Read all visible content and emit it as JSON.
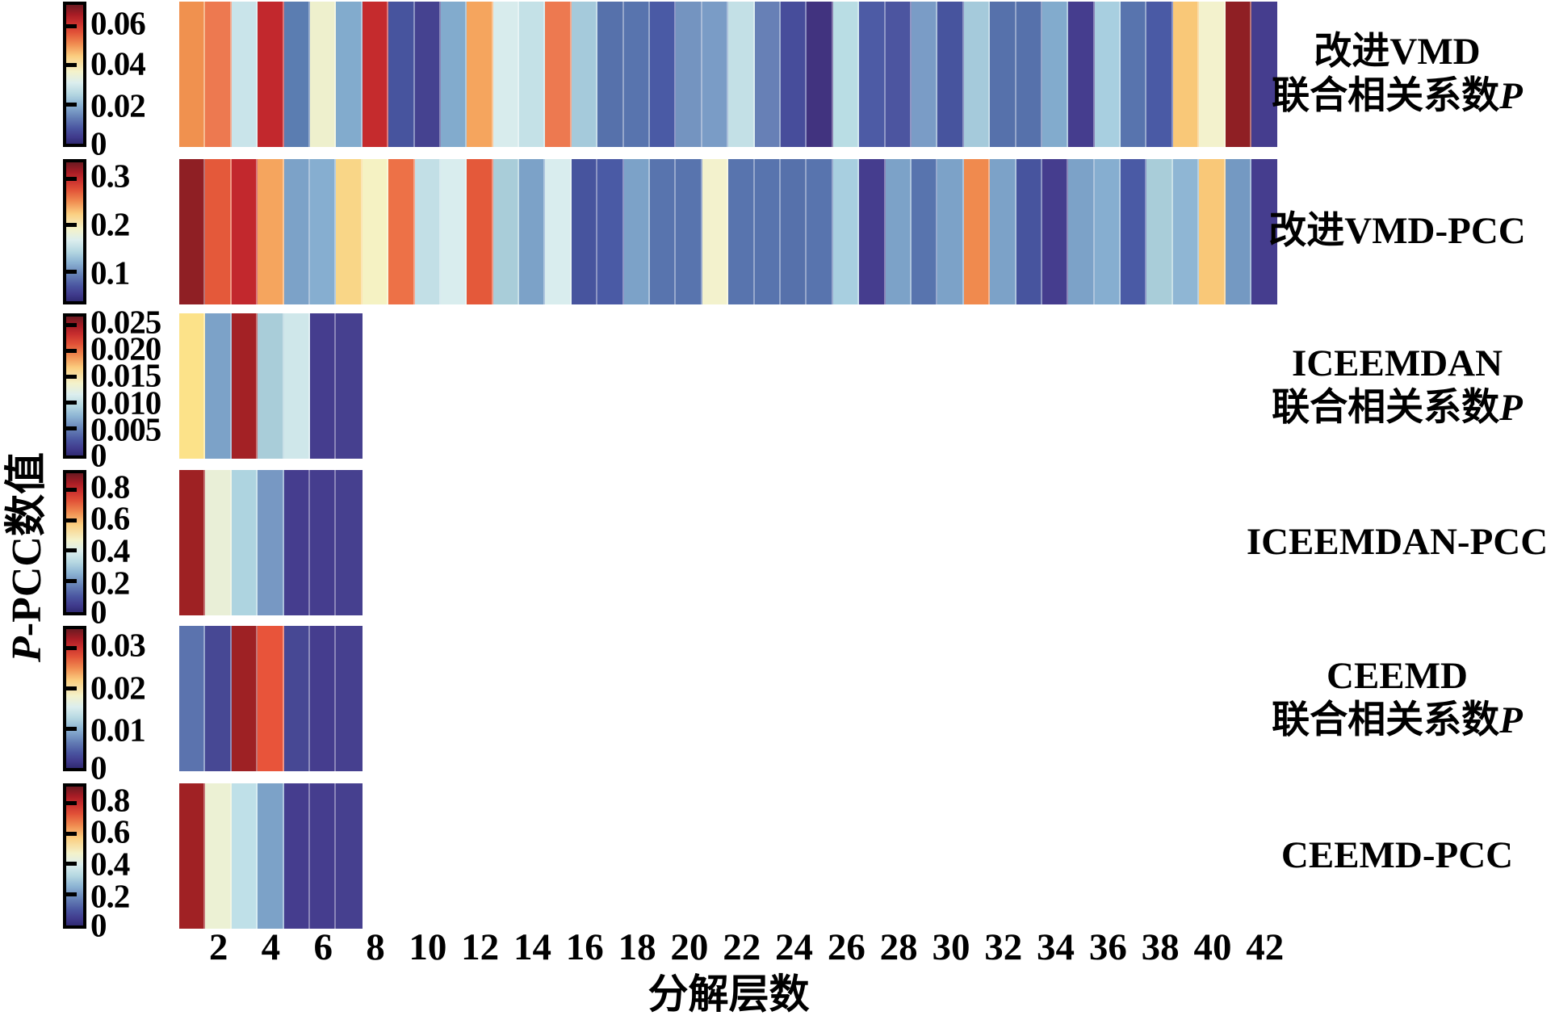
{
  "chart_data": {
    "type": "heatmap",
    "title": "",
    "xlabel": "分解层数",
    "ylabel": "P-PCC数值",
    "x_ticks": [
      "2",
      "4",
      "6",
      "8",
      "10",
      "12",
      "14",
      "16",
      "18",
      "20",
      "22",
      "24",
      "26",
      "28",
      "30",
      "32",
      "34",
      "36",
      "38",
      "40",
      "42"
    ],
    "n_cols_long": 42,
    "n_cols_short": 7,
    "legend_position": "per-row colorbar on left",
    "grid": false,
    "colormap_gradient_top_to_bottom": [
      "#6b1a21 0%",
      "#a81c25 7%",
      "#c9302e 13%",
      "#e25338 20%",
      "#f08b50 28%",
      "#fbce80 37%",
      "#f4f2ca 48%",
      "#dceeee 56%",
      "#b6d8e2 64%",
      "#8cb3d3 72%",
      "#6580b6 81%",
      "#4a55a0 89%",
      "#403b8d 95%",
      "#302a72 100%"
    ],
    "rows": [
      {
        "name": "改进VMD 联合相关系数P",
        "label_lines": [
          "改进VMD",
          "联合相关系数P"
        ],
        "colorbar_range_estimate": [
          0,
          0.07
        ],
        "colorbar_ticks": [
          {
            "label": "0.06",
            "pos": 0.15
          },
          {
            "label": "0.04",
            "pos": 0.43
          },
          {
            "label": "0.02",
            "pos": 0.715
          },
          {
            "label": "0",
            "pos": 0.975
          }
        ],
        "cells": [
          "#f0914f",
          "#ed7950",
          "#c9e4ea",
          "#c2282d",
          "#5b7db1",
          "#eef0cd",
          "#82abcd",
          "#c52b2d",
          "#47549e",
          "#454290",
          "#82abcd",
          "#f5a55e",
          "#d8eced",
          "#c4e1e7",
          "#ed7950",
          "#a5cadb",
          "#5671ab",
          "#5874ae",
          "#4a5aa5",
          "#7494c0",
          "#7a9cc6",
          "#c3e0e6",
          "#6780b6",
          "#474d9b",
          "#41337f",
          "#b9dde4",
          "#4d5ba5",
          "#4c55a0",
          "#7a9cc6",
          "#47549e",
          "#a5cadb",
          "#5671ab",
          "#5671ab",
          "#82abcd",
          "#453d8e",
          "#a8cfe0",
          "#5874ae",
          "#4a5aa5",
          "#f9c878",
          "#f3f2cd",
          "#8f1f24",
          "#453d8e"
        ]
      },
      {
        "name": "改进VMD-PCC",
        "label_lines": [
          "改进VMD-PCC"
        ],
        "colorbar_range_estimate": [
          0.05,
          0.35
        ],
        "colorbar_ticks": [
          {
            "label": "0.3",
            "pos": 0.115
          },
          {
            "label": "0.2",
            "pos": 0.45
          },
          {
            "label": "0.1",
            "pos": 0.785
          }
        ],
        "cells": [
          "#8f1f24",
          "#e4593a",
          "#c2282d",
          "#f5a55e",
          "#7ca2c8",
          "#86aed0",
          "#f9d687",
          "#f5f2c3",
          "#ed7147",
          "#c2dfe6",
          "#d9edee",
          "#e4593a",
          "#a9cdd9",
          "#7ca2c8",
          "#d9edee",
          "#47549e",
          "#4a5aa5",
          "#7ca2c8",
          "#5874ae",
          "#5874ae",
          "#f3f2cd",
          "#5874ae",
          "#5874ae",
          "#5671ab",
          "#5874ae",
          "#a8cfe0",
          "#453d8e",
          "#7ca2c8",
          "#5874ae",
          "#7ca2c8",
          "#f08a4e",
          "#7ca2c8",
          "#47549e",
          "#453d8e",
          "#7ca2c8",
          "#86aed0",
          "#4a5aa5",
          "#a9cdd9",
          "#8fb6d4",
          "#f9c878",
          "#7499c2",
          "#453d8e"
        ]
      },
      {
        "name": "ICEEMDAN 联合相关系数P",
        "label_lines": [
          "ICEEMDAN",
          "联合相关系数P"
        ],
        "colorbar_range_estimate": [
          0,
          0.027
        ],
        "colorbar_ticks": [
          {
            "label": "0.025",
            "pos": 0.06
          },
          {
            "label": "0.020",
            "pos": 0.245
          },
          {
            "label": "0.015",
            "pos": 0.43
          },
          {
            "label": "0.010",
            "pos": 0.615
          },
          {
            "label": "0.005",
            "pos": 0.8
          },
          {
            "label": "0",
            "pos": 0.975
          }
        ],
        "cells": [
          "#fce289",
          "#7ca2c8",
          "#a32125",
          "#a9cdd9",
          "#cfe7ea",
          "#453d8e",
          "#46408f"
        ]
      },
      {
        "name": "ICEEMDAN-PCC",
        "label_lines": [
          "ICEEMDAN-PCC"
        ],
        "colorbar_range_estimate": [
          0,
          0.9
        ],
        "colorbar_ticks": [
          {
            "label": "0.8",
            "pos": 0.115
          },
          {
            "label": "0.6",
            "pos": 0.335
          },
          {
            "label": "0.4",
            "pos": 0.555
          },
          {
            "label": "0.2",
            "pos": 0.775
          },
          {
            "label": "0",
            "pos": 0.975
          }
        ],
        "cells": [
          "#9e2123",
          "#e9efd7",
          "#aed4e0",
          "#7798c3",
          "#453d8e",
          "#453d8e",
          "#46408f"
        ]
      },
      {
        "name": "CEEMD 联合相关系数P",
        "label_lines": [
          "CEEMD",
          "联合相关系数P"
        ],
        "colorbar_range_estimate": [
          0,
          0.035
        ],
        "colorbar_ticks": [
          {
            "label": "0.03",
            "pos": 0.135
          },
          {
            "label": "0.02",
            "pos": 0.425
          },
          {
            "label": "0.01",
            "pos": 0.715
          },
          {
            "label": "0",
            "pos": 0.975
          }
        ],
        "cells": [
          "#5b73ae",
          "#474894",
          "#9e2124",
          "#e8543a",
          "#474894",
          "#453d8e",
          "#46408f"
        ]
      },
      {
        "name": "CEEMD-PCC",
        "label_lines": [
          "CEEMD-PCC"
        ],
        "colorbar_range_estimate": [
          0,
          0.9
        ],
        "colorbar_ticks": [
          {
            "label": "0.8",
            "pos": 0.115
          },
          {
            "label": "0.6",
            "pos": 0.335
          },
          {
            "label": "0.4",
            "pos": 0.555
          },
          {
            "label": "0.2",
            "pos": 0.775
          },
          {
            "label": "0",
            "pos": 0.975
          }
        ],
        "cells": [
          "#a02124",
          "#ecf1d4",
          "#bfe0e8",
          "#7ca2c8",
          "#453d8e",
          "#453d8e",
          "#46408f"
        ]
      }
    ]
  }
}
